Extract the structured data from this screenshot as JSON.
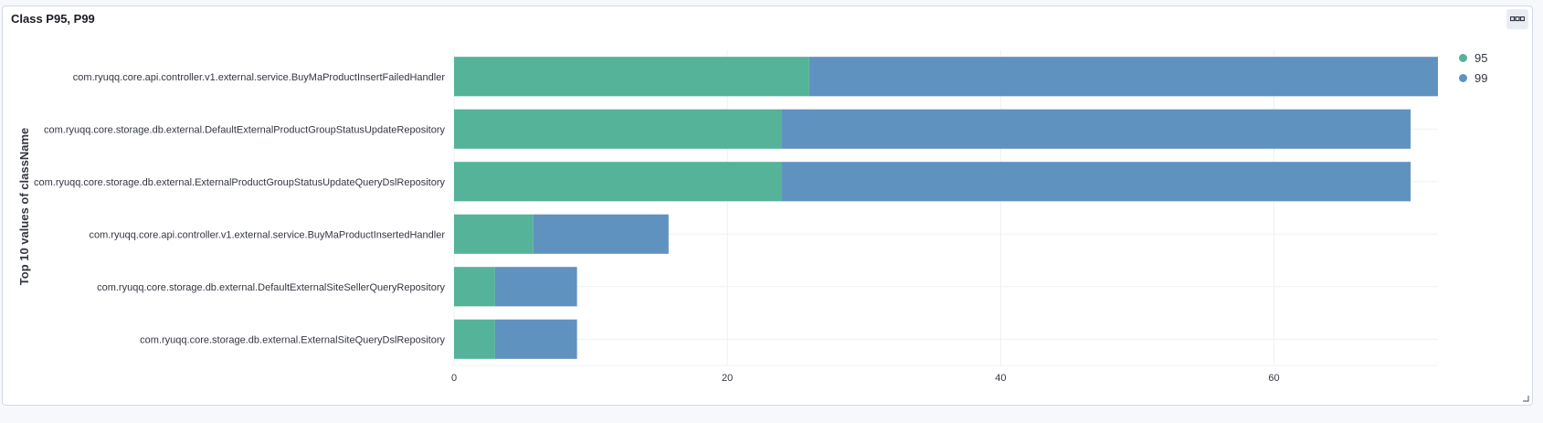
{
  "panel": {
    "title": "Class P95, P99"
  },
  "icons": {
    "options": "ellipsis-icon",
    "resize": "resize-corner-icon"
  },
  "chart_data": {
    "type": "bar",
    "orientation": "horizontal",
    "stacked": true,
    "ylabel": "Top 10 values of className",
    "xlabel": "",
    "xlim": [
      0,
      72
    ],
    "x_ticks": [
      0,
      20,
      40,
      60
    ],
    "grid": true,
    "legend_position": "top-right",
    "categories": [
      "com.ryuqq.core.api.controller.v1.external.service.BuyMaProductInsertFailedHandler",
      "com.ryuqq.core.storage.db.external.DefaultExternalProductGroupStatusUpdateRepository",
      "com.ryuqq.core.storage.db.external.ExternalProductGroupStatusUpdateQueryDslRepository",
      "com.ryuqq.core.api.controller.v1.external.service.BuyMaProductInsertedHandler",
      "com.ryuqq.core.storage.db.external.DefaultExternalSiteSellerQueryRepository",
      "com.ryuqq.core.storage.db.external.ExternalSiteQueryDslRepository"
    ],
    "series": [
      {
        "name": "95",
        "color": "#54b399",
        "values": [
          26,
          24,
          24,
          5.8,
          3,
          3
        ]
      },
      {
        "name": "99",
        "color": "#6092c0",
        "values": [
          46,
          46,
          46,
          9.9,
          6,
          6
        ]
      }
    ]
  }
}
